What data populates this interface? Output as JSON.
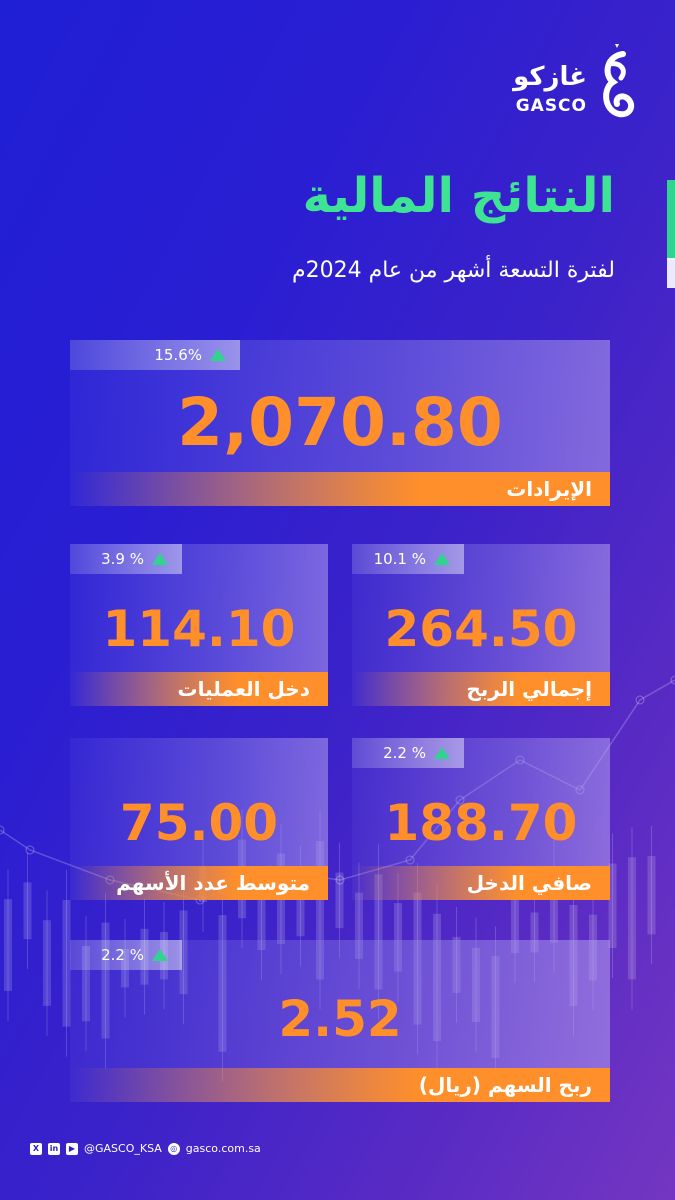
{
  "brand": {
    "name_ar": "غازكو",
    "name_en": "GASCO"
  },
  "title": "النتائج المالية",
  "subtitle": "لفترة التسعة أشهر من عام 2024م",
  "metrics": {
    "revenue": {
      "value": "2,070.80",
      "label": "الإيرادات",
      "change": "15.6%"
    },
    "operating_income": {
      "value": "114.10",
      "label": "دخل العمليات",
      "change": "3.9 %"
    },
    "gross_profit": {
      "value": "264.50",
      "label": "إجمالي الربح",
      "change": "10.1 %"
    },
    "avg_shares": {
      "value": "75.00",
      "label": "متوسط عدد الأسهم"
    },
    "net_income": {
      "value": "188.70",
      "label": "صافي الدخل",
      "change": "2.2 %"
    },
    "eps": {
      "value": "2.52",
      "label": "ربح السهم (ريال)",
      "change": "2.2 %"
    }
  },
  "footer": {
    "icons": [
      "x-icon",
      "linkedin-icon",
      "youtube-icon"
    ],
    "handle": "@GASCO_KSA",
    "website": "gasco.com.sa"
  },
  "colors": {
    "accent_orange": "#ff8f2a",
    "accent_green": "#2fd48f",
    "title_green": "#3ee394"
  }
}
